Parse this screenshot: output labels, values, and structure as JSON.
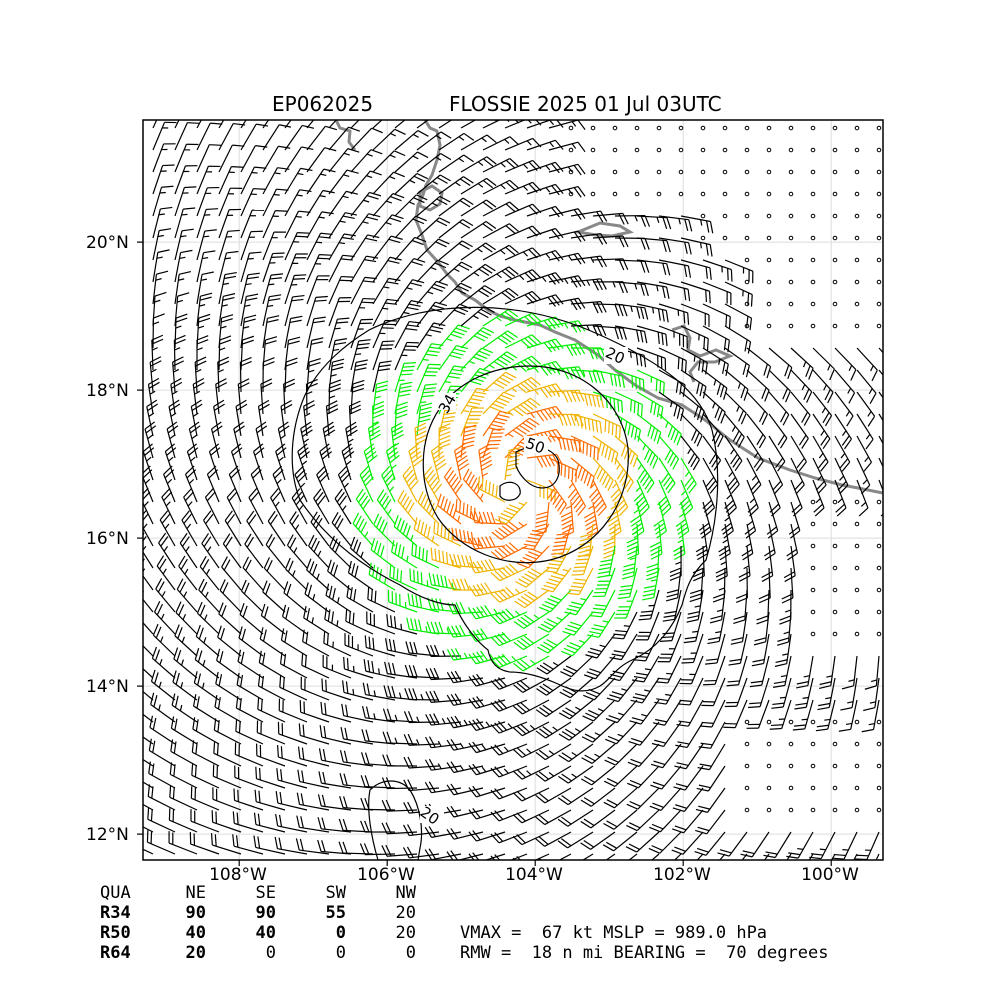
{
  "title": {
    "storm_id": "EP062025",
    "storm_info": "FLOSSIE 2025 01 Jul 03UTC"
  },
  "axes": {
    "lat_ticks": [
      "20°N",
      "18°N",
      "16°N",
      "14°N",
      "12°N"
    ],
    "lon_ticks": [
      "108°W",
      "106°W",
      "104°W",
      "102°W",
      "100°W"
    ],
    "lon_range": [
      -109.3,
      -99.3
    ],
    "lat_range": [
      11.65,
      21.65
    ]
  },
  "contour_labels": [
    "20",
    "34",
    "50",
    "20"
  ],
  "colors": {
    "coastline": "#888888",
    "barb_under_34kt": "#000000",
    "barb_34_to_50kt": "#00ee00",
    "barb_50_to_64kt": "#f0b400",
    "barb_64kt_plus": "#ff6a00",
    "grid": "#dddddd"
  },
  "wind_radii": {
    "header": [
      "QUA",
      "NE",
      "SE",
      "SW",
      "NW"
    ],
    "rows": [
      {
        "quadrant": "R34",
        "ne": "90",
        "se": "90",
        "sw": "55",
        "nw": "20"
      },
      {
        "quadrant": "R50",
        "ne": "40",
        "se": "40",
        "sw": "0",
        "nw": "20"
      },
      {
        "quadrant": "R64",
        "ne": "20",
        "se": "0",
        "sw": "0",
        "nw": "0"
      }
    ]
  },
  "stats": {
    "line1": "VMAX =  67 kt MSLP = 989.0 hPa",
    "line2": "RMW =  18 n mi BEARING =  70 degrees"
  }
}
